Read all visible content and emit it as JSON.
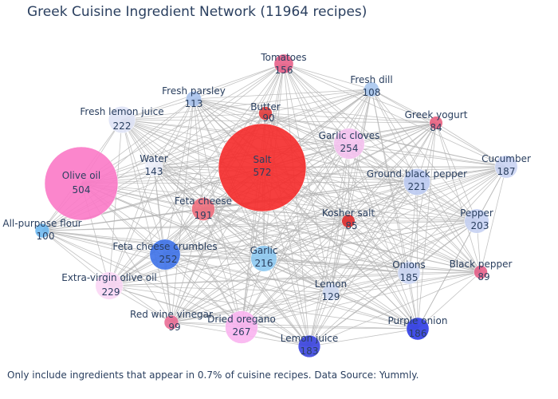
{
  "title": "Greek Cuisine Ingredient Network (11964 recipes)",
  "footnote": "Only include ingredients that appear in 0.7% of cuisine recipes. Data Source: Yummly.",
  "chart_data": {
    "type": "network",
    "nodes": [
      {
        "name": "Tomatoes",
        "count": 156,
        "color": "#e8608a"
      },
      {
        "name": "Fresh dill",
        "count": 108,
        "color": "#a9c7ee"
      },
      {
        "name": "Fresh parsley",
        "count": 113,
        "color": "#a8c2ec"
      },
      {
        "name": "Butter",
        "count": 90,
        "color": "#e23b3b"
      },
      {
        "name": "Greek yogurt",
        "count": 84,
        "color": "#e8617f"
      },
      {
        "name": "Fresh lemon juice",
        "count": 222,
        "color": "#dfe3f6"
      },
      {
        "name": "Garlic cloves",
        "count": 254,
        "color": "#f5c2f0"
      },
      {
        "name": "Cucumber",
        "count": 187,
        "color": "#c9d3f3"
      },
      {
        "name": "Salt",
        "count": 572,
        "color": "#f52a2a"
      },
      {
        "name": "Water",
        "count": 143,
        "color": "#eceef9"
      },
      {
        "name": "Ground black pepper",
        "count": 221,
        "color": "#bccbf2"
      },
      {
        "name": "Olive oil",
        "count": 504,
        "color": "#fb79c6"
      },
      {
        "name": "Feta cheese",
        "count": 191,
        "color": "#ee6e7c"
      },
      {
        "name": "Kosher salt",
        "count": 85,
        "color": "#e02c2c"
      },
      {
        "name": "Pepper",
        "count": 203,
        "color": "#c6d1f3"
      },
      {
        "name": "All-purpose flour",
        "count": 100,
        "color": "#6fb9f1"
      },
      {
        "name": "Feta cheese crumbles",
        "count": 252,
        "color": "#3e72e9"
      },
      {
        "name": "Garlic",
        "count": 216,
        "color": "#8ecaf2"
      },
      {
        "name": "Onions",
        "count": 185,
        "color": "#cbd6f4"
      },
      {
        "name": "Black pepper",
        "count": 89,
        "color": "#e6608a"
      },
      {
        "name": "Extra-virgin olive oil",
        "count": 229,
        "color": "#fbd7f5"
      },
      {
        "name": "Lemon",
        "count": 129,
        "color": "#cfdaf3"
      },
      {
        "name": "Red wine vinegar",
        "count": 99,
        "color": "#ea6d95"
      },
      {
        "name": "Dried oregano",
        "count": 267,
        "color": "#f9b4ef"
      },
      {
        "name": "Purple onion",
        "count": 186,
        "color": "#2f3ce5"
      },
      {
        "name": "Lemon juice",
        "count": 183,
        "color": "#3a44e0"
      }
    ],
    "edges": "all",
    "edge_color": "#b4b4b4"
  }
}
